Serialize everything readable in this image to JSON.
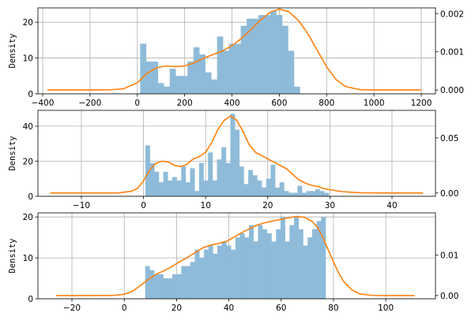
{
  "chart_data": [
    {
      "type": "histogram-density",
      "ylabel": "Density",
      "grid": true,
      "hist_color": "#8ebbd9",
      "kde_color": "#ff7f0e",
      "xlim": [
        -420,
        1260
      ],
      "ylim_left": [
        0,
        24
      ],
      "ylim_right": [
        -0.0001,
        0.00215
      ],
      "xticks": [
        -400,
        -200,
        0,
        200,
        400,
        600,
        800,
        1000,
        1200
      ],
      "yticks_left": [
        0,
        10,
        20
      ],
      "yticks_right": [
        0.0,
        0.001,
        0.002
      ],
      "yticks_right_labels": [
        "0.000",
        "0.001",
        "0.002"
      ],
      "bins": {
        "start": 12,
        "width": 25,
        "counts": [
          14,
          9,
          9,
          3,
          2,
          7,
          5,
          5,
          9,
          13,
          11,
          6,
          4,
          16,
          12,
          14,
          14,
          19,
          21,
          21,
          22,
          22,
          23,
          22,
          19,
          12,
          2
        ]
      },
      "kde": {
        "x": [
          -380,
          -300,
          -200,
          -120,
          -60,
          0,
          40,
          80,
          120,
          160,
          200,
          240,
          280,
          320,
          360,
          400,
          440,
          480,
          520,
          560,
          600,
          640,
          680,
          720,
          760,
          800,
          840,
          880,
          940,
          1000,
          1100,
          1200
        ],
        "y": [
          0.0,
          0.0,
          0.0,
          3e-06,
          3e-05,
          0.00019,
          0.00043,
          0.00058,
          0.00063,
          0.00061,
          0.00063,
          0.00071,
          0.00083,
          0.00093,
          0.00102,
          0.00116,
          0.00135,
          0.00158,
          0.00183,
          0.00203,
          0.00212,
          0.00205,
          0.00183,
          0.00148,
          0.00104,
          0.00061,
          0.00027,
          9e-05,
          1e-05,
          0.0,
          0.0,
          0.0
        ]
      }
    },
    {
      "type": "histogram-density",
      "ylabel": "Density",
      "grid": true,
      "hist_color": "#8ebbd9",
      "kde_color": "#ff7f0e",
      "xlim": [
        -17,
        47
      ],
      "ylim_left": [
        0,
        49
      ],
      "ylim_right": [
        -0.003,
        0.075
      ],
      "xticks": [
        -10,
        0,
        10,
        20,
        30,
        40
      ],
      "yticks_left": [
        0,
        20,
        40
      ],
      "yticks_right": [
        0.0,
        0.05
      ],
      "yticks_right_labels": [
        "0.00",
        "0.05"
      ],
      "bins": {
        "start": 0.3,
        "width": 0.72,
        "counts": [
          29,
          19,
          14,
          8,
          14,
          9,
          11,
          9,
          17,
          8,
          16,
          3,
          19,
          9,
          25,
          9,
          21,
          28,
          19,
          47,
          38,
          17,
          7,
          15,
          12,
          9,
          5,
          10,
          18,
          5,
          8,
          3,
          2,
          2,
          6,
          2,
          3,
          3,
          4,
          3,
          2
        ]
      },
      "kde": {
        "x": [
          -15,
          -8,
          -4,
          -2,
          -1,
          0,
          0.5,
          1,
          2,
          3,
          4,
          5,
          6,
          7,
          8,
          9,
          10,
          11,
          12,
          13,
          14,
          15,
          16,
          17,
          18,
          19,
          20,
          21,
          22,
          23,
          24,
          25,
          26,
          27,
          28,
          29,
          30,
          32,
          35,
          40,
          45
        ],
        "y": [
          0.0,
          0.0,
          0.0001,
          0.0015,
          0.004,
          0.011,
          0.016,
          0.021,
          0.027,
          0.029,
          0.028,
          0.025,
          0.024,
          0.026,
          0.031,
          0.033,
          0.037,
          0.046,
          0.058,
          0.066,
          0.07,
          0.066,
          0.056,
          0.044,
          0.037,
          0.034,
          0.031,
          0.028,
          0.025,
          0.022,
          0.017,
          0.012,
          0.009,
          0.007,
          0.006,
          0.004,
          0.003,
          0.0012,
          0.0002,
          0.0,
          0.0
        ]
      }
    },
    {
      "type": "histogram-density",
      "ylabel": "Density",
      "grid": true,
      "hist_color": "#8ebbd9",
      "kde_color": "#ff7f0e",
      "xlim": [
        -33,
        119
      ],
      "ylim_left": [
        0,
        21
      ],
      "ylim_right": [
        -0.0008,
        0.0205
      ],
      "xticks": [
        -20,
        0,
        20,
        40,
        60,
        80,
        100
      ],
      "yticks_left": [
        0,
        10,
        20
      ],
      "yticks_right": [
        0.0,
        0.01
      ],
      "yticks_right_labels": [
        "0.00",
        "0.01"
      ],
      "bins": {
        "start": 8,
        "width": 1.725,
        "counts": [
          8,
          7,
          6,
          6,
          5,
          5,
          6,
          6,
          8,
          8,
          9,
          12,
          10,
          12,
          13,
          11,
          13,
          14,
          13,
          12,
          15,
          16,
          15,
          18,
          14,
          18,
          17,
          16,
          14,
          17,
          20,
          14,
          18,
          20,
          17,
          13,
          15,
          17,
          19,
          20
        ]
      },
      "kde": {
        "x": [
          -26,
          -15,
          -8,
          -4,
          0,
          3,
          6,
          9,
          12,
          15,
          18,
          21,
          24,
          27,
          30,
          33,
          36,
          39,
          42,
          45,
          48,
          51,
          54,
          57,
          60,
          63,
          66,
          69,
          72,
          74,
          76,
          78,
          80,
          82,
          84,
          87,
          90,
          95,
          100,
          111
        ],
        "y": [
          0.0,
          0.0,
          1e-05,
          5e-05,
          0.0003,
          0.001,
          0.0024,
          0.0039,
          0.0052,
          0.0061,
          0.0071,
          0.0083,
          0.0094,
          0.0106,
          0.0118,
          0.0125,
          0.0129,
          0.0134,
          0.0145,
          0.0156,
          0.0166,
          0.0175,
          0.0181,
          0.0185,
          0.0189,
          0.0193,
          0.0196,
          0.0194,
          0.0183,
          0.0168,
          0.0143,
          0.0113,
          0.0083,
          0.0056,
          0.0034,
          0.0014,
          0.0004,
          3e-05,
          0.0,
          0.0
        ]
      }
    }
  ]
}
